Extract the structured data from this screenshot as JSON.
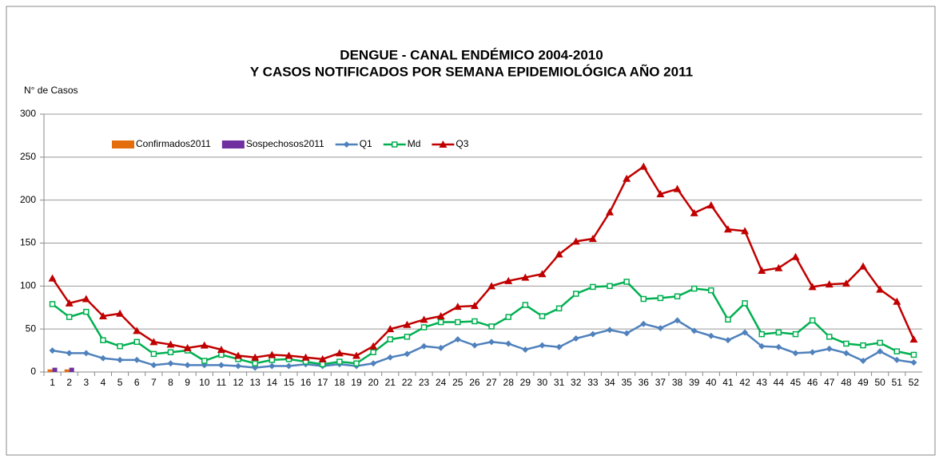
{
  "chart_data": {
    "type": "combo",
    "title": [
      "DENGUE - CANAL ENDÉMICO 2004-2010",
      "Y CASOS NOTIFICADOS POR SEMANA EPIDEMIOLÓGICA  AÑO 2011"
    ],
    "y_label": "N° de Casos",
    "categories": [
      "1",
      "2",
      "3",
      "4",
      "5",
      "6",
      "7",
      "8",
      "9",
      "10",
      "11",
      "12",
      "13",
      "14",
      "15",
      "16",
      "17",
      "18",
      "19",
      "20",
      "21",
      "22",
      "23",
      "24",
      "25",
      "26",
      "27",
      "28",
      "29",
      "30",
      "31",
      "32",
      "33",
      "34",
      "35",
      "36",
      "37",
      "38",
      "39",
      "40",
      "41",
      "42",
      "43",
      "44",
      "45",
      "46",
      "47",
      "48",
      "49",
      "50",
      "51",
      "52"
    ],
    "ylim": [
      0,
      300
    ],
    "yticks": [
      0,
      50,
      100,
      150,
      200,
      250,
      300
    ],
    "grid": true,
    "legend": "top-left",
    "series": [
      {
        "name": "Confirmados2011",
        "type": "bar",
        "color": "#e46c0a",
        "values": [
          3,
          3,
          null,
          null,
          null,
          null,
          null,
          null,
          null,
          null,
          null,
          null,
          null,
          null,
          null,
          null,
          null,
          null,
          null,
          null,
          null,
          null,
          null,
          null,
          null,
          null,
          null,
          null,
          null,
          null,
          null,
          null,
          null,
          null,
          null,
          null,
          null,
          null,
          null,
          null,
          null,
          null,
          null,
          null,
          null,
          null,
          null,
          null,
          null,
          null,
          null,
          null
        ]
      },
      {
        "name": "Sospechosos2011",
        "type": "bar",
        "color": "#7030a0",
        "values": [
          5,
          5,
          null,
          null,
          null,
          null,
          null,
          null,
          null,
          null,
          null,
          null,
          null,
          null,
          null,
          null,
          null,
          null,
          null,
          null,
          null,
          null,
          null,
          null,
          null,
          null,
          null,
          null,
          null,
          null,
          null,
          null,
          null,
          null,
          null,
          null,
          null,
          null,
          null,
          null,
          null,
          null,
          null,
          null,
          null,
          null,
          null,
          null,
          null,
          null,
          null,
          null
        ]
      },
      {
        "name": "Q1",
        "type": "line",
        "marker": "diamond",
        "color": "#4f81bd",
        "values": [
          25,
          22,
          22,
          16,
          14,
          14,
          8,
          10,
          8,
          8,
          8,
          7,
          5,
          7,
          7,
          9,
          7,
          9,
          7,
          10,
          17,
          21,
          30,
          28,
          38,
          31,
          35,
          33,
          26,
          31,
          29,
          39,
          44,
          49,
          45,
          56,
          51,
          60,
          48,
          42,
          37,
          46,
          30,
          29,
          22,
          23,
          27,
          22,
          13,
          24,
          14,
          11
        ]
      },
      {
        "name": "Md",
        "type": "line",
        "marker": "square",
        "color": "#00b050",
        "values": [
          79,
          64,
          70,
          37,
          30,
          35,
          21,
          23,
          25,
          13,
          20,
          15,
          10,
          14,
          15,
          12,
          9,
          12,
          10,
          23,
          38,
          41,
          52,
          58,
          58,
          59,
          53,
          64,
          78,
          65,
          74,
          91,
          99,
          100,
          105,
          85,
          86,
          88,
          97,
          95,
          61,
          80,
          44,
          46,
          44,
          60,
          41,
          33,
          31,
          34,
          24,
          20
        ]
      },
      {
        "name": "Q3",
        "type": "line",
        "marker": "triangle",
        "color": "#c00000",
        "values": [
          109,
          80,
          85,
          65,
          68,
          48,
          35,
          32,
          28,
          31,
          26,
          19,
          17,
          20,
          19,
          17,
          15,
          22,
          19,
          30,
          50,
          55,
          61,
          65,
          76,
          77,
          100,
          106,
          110,
          114,
          137,
          152,
          155,
          186,
          225,
          239,
          207,
          213,
          185,
          194,
          166,
          164,
          118,
          121,
          134,
          99,
          102,
          103,
          123,
          96,
          82,
          38
        ]
      }
    ]
  }
}
